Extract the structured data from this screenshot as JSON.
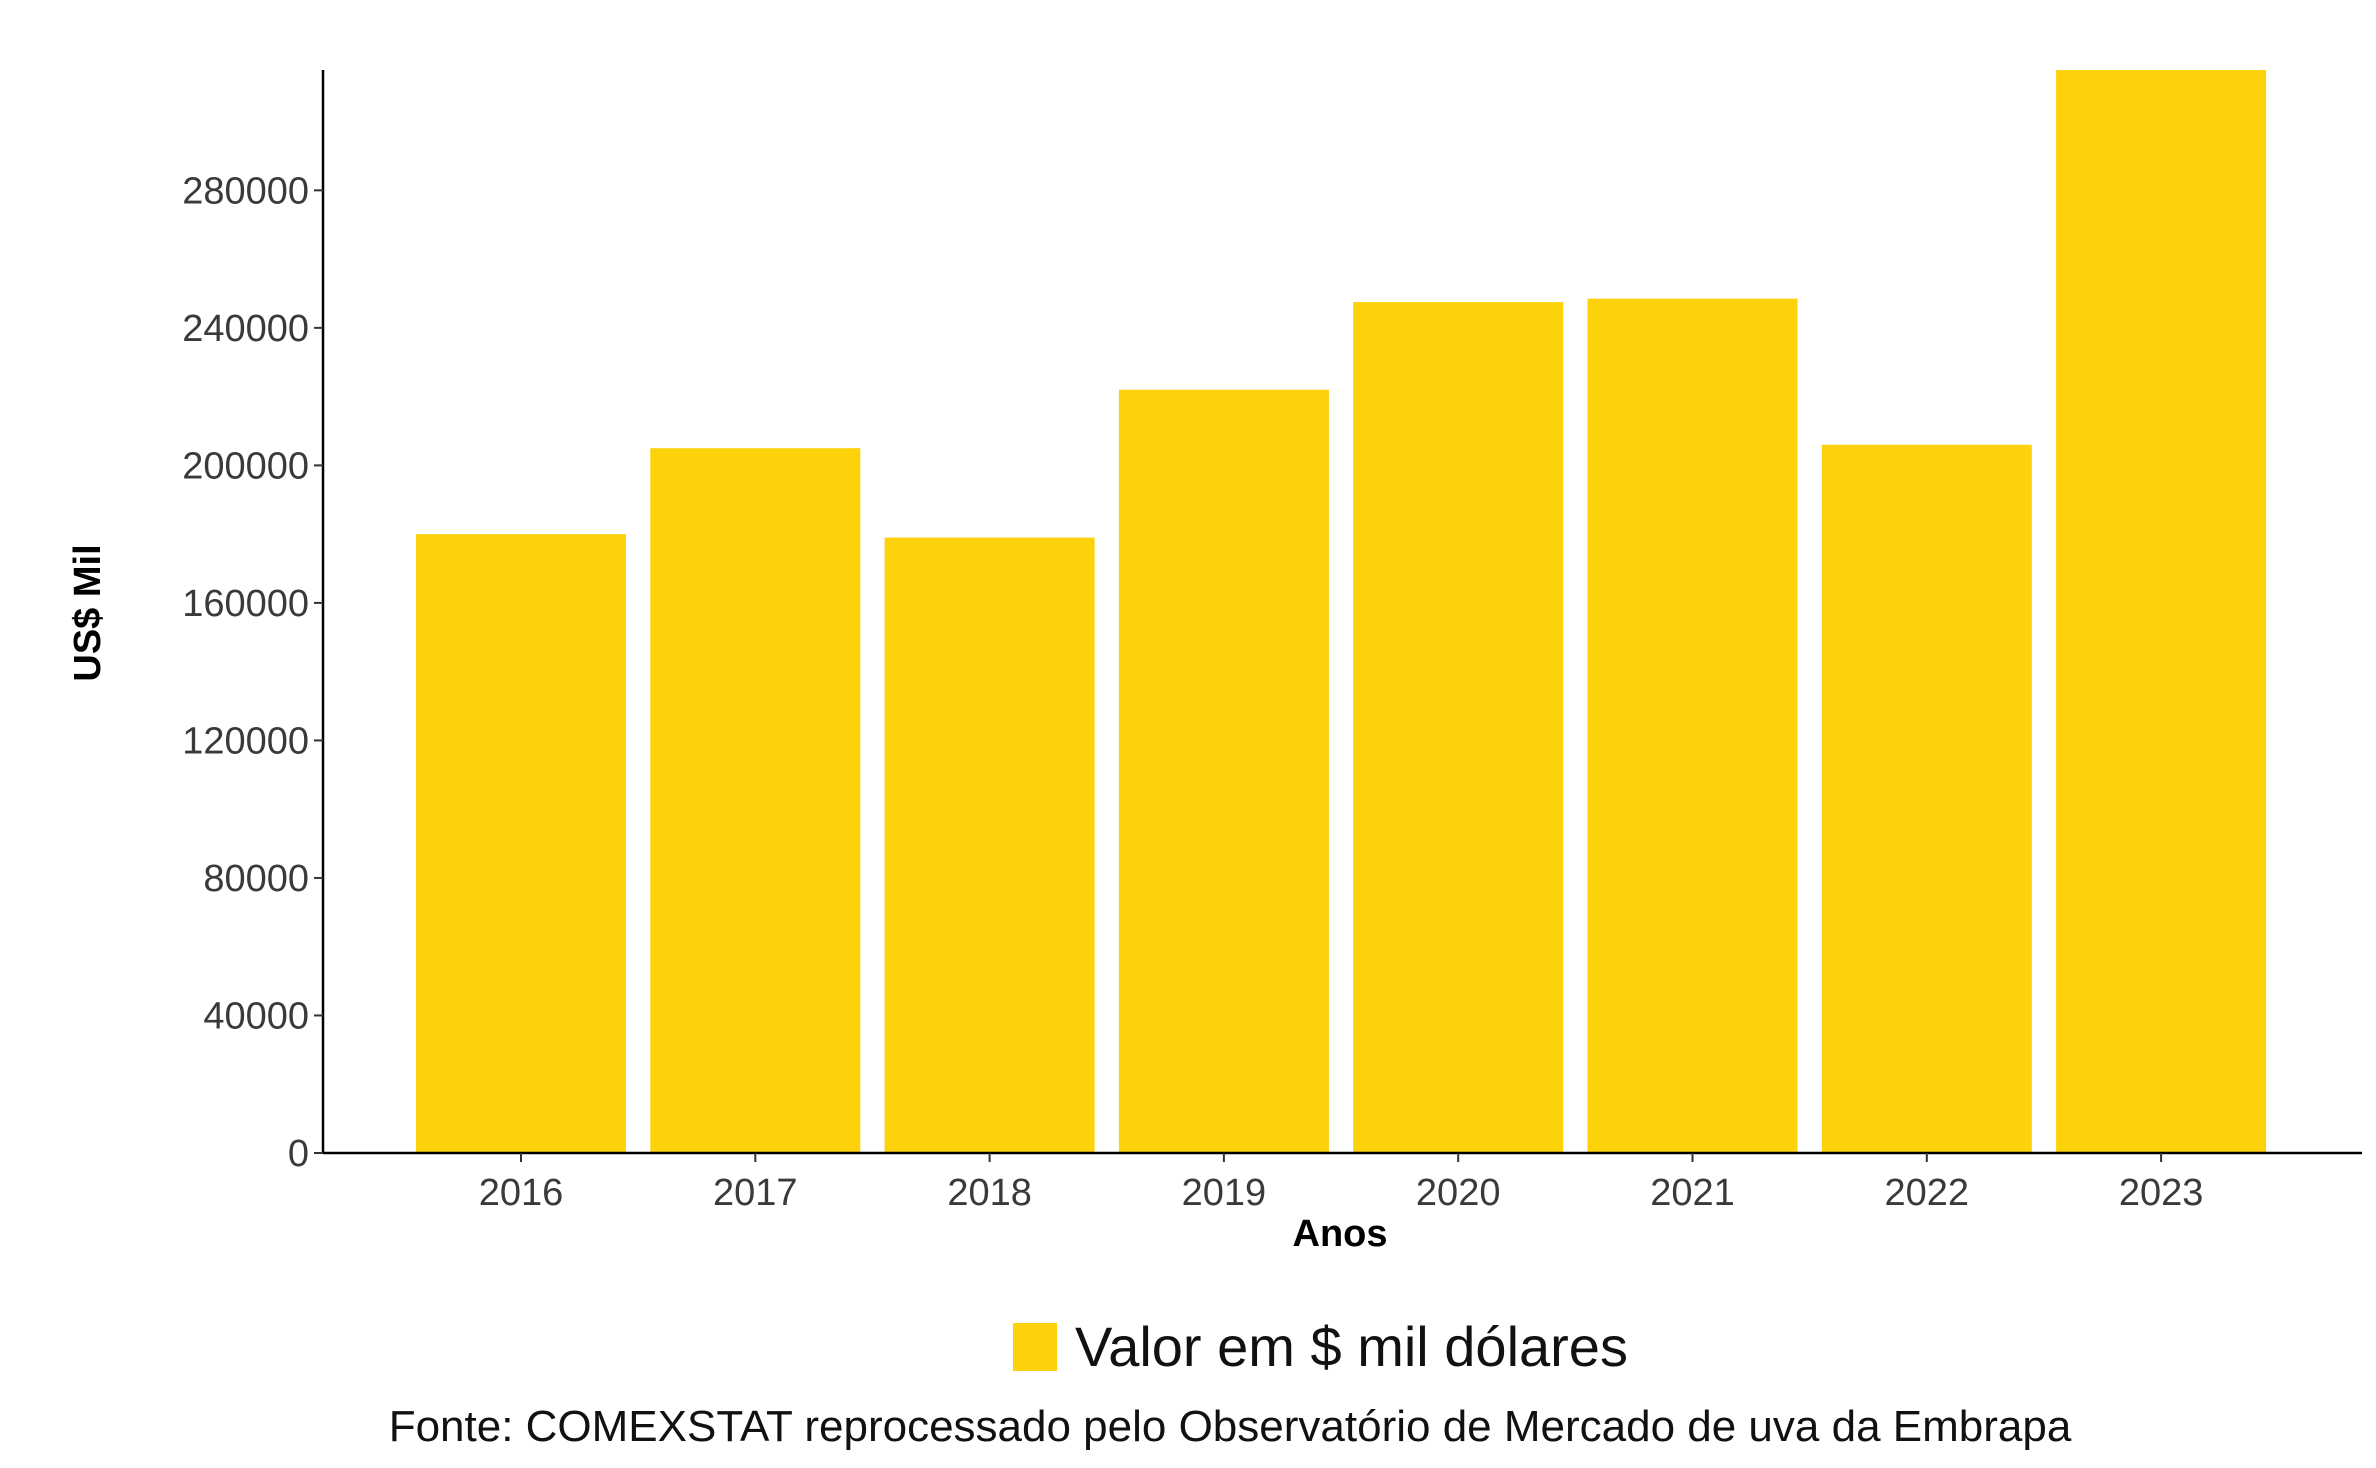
{
  "chart_data": {
    "type": "bar",
    "categories": [
      "2016",
      "2017",
      "2018",
      "2019",
      "2020",
      "2021",
      "2022",
      "2023"
    ],
    "series": [
      {
        "name": "Valor em $ mil dólares",
        "color": "#FDD20B",
        "values": [
          180000,
          205000,
          179000,
          222000,
          247500,
          248500,
          206000,
          315000
        ]
      }
    ],
    "xlabel": "Anos",
    "ylabel": "US$ Mil",
    "ylim": [
      0,
      315000
    ],
    "yticks": [
      0,
      40000,
      80000,
      120000,
      160000,
      200000,
      240000,
      280000
    ],
    "grid": false,
    "legend_position": "bottom",
    "caption": "Fonte: COMEXSTAT reprocessado pelo Observatório de Mercado de uva da Embrapa"
  }
}
